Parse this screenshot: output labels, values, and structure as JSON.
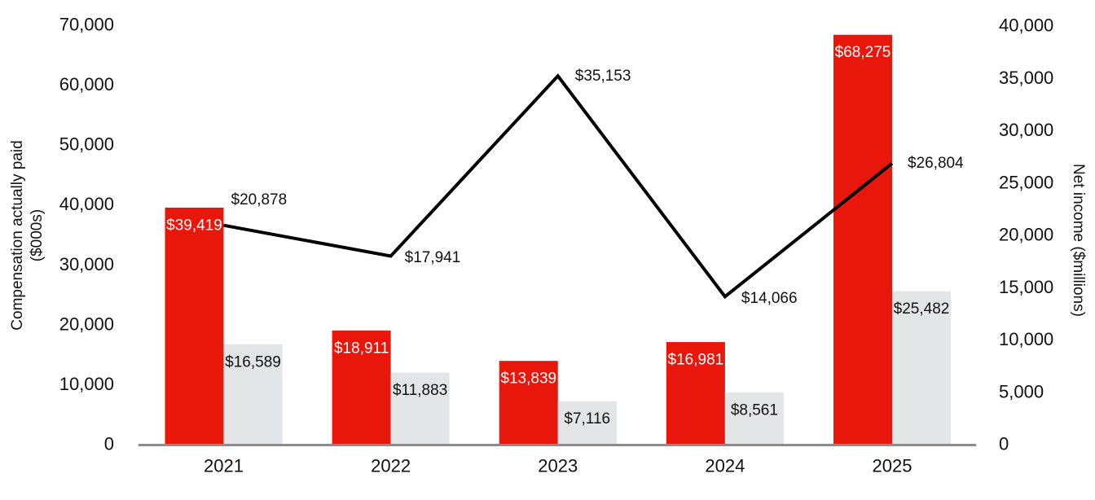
{
  "chart_data": {
    "type": "bar+line",
    "title": "",
    "categories": [
      "2021",
      "2022",
      "2023",
      "2024",
      "2025"
    ],
    "series": [
      {
        "name": "compensation-actually-paid-bars",
        "type": "bar",
        "axis": "left",
        "color": "#e9170b",
        "label_color": "#ffffff",
        "values": [
          39419,
          18911,
          13839,
          16981,
          68275
        ],
        "labels": [
          "$39,419",
          "$18,911",
          "$13,839",
          "$16,981",
          "$68,275"
        ]
      },
      {
        "name": "gray-bars",
        "type": "bar",
        "axis": "left",
        "color": "#e4e5e6",
        "label_color": "#111111",
        "values": [
          16589,
          11883,
          7116,
          8561,
          25482
        ],
        "labels": [
          "$16,589",
          "$11,883",
          "$7,116",
          "$8,561",
          "$25,482"
        ]
      },
      {
        "name": "net-income-line",
        "type": "line",
        "axis": "right",
        "color": "#000000",
        "label_color": "#111111",
        "values": [
          20878,
          17941,
          35153,
          14066,
          26804
        ],
        "labels": [
          "$20,878",
          "$17,941",
          "$35,153",
          "$14,066",
          "$26,804"
        ]
      }
    ],
    "left_axis": {
      "title_line1": "Compensation actually paid",
      "title_line2": "($000s)",
      "min": 0,
      "max": 70000,
      "tick_step": 10000,
      "tick_labels": [
        "0",
        "10,000",
        "20,000",
        "30,000",
        "40,000",
        "50,000",
        "60,000",
        "70,000"
      ]
    },
    "right_axis": {
      "title": "Net income ($millions)",
      "min": 0,
      "max": 40000,
      "tick_step": 5000,
      "tick_labels": [
        "0",
        "5,000",
        "10,000",
        "15,000",
        "20,000",
        "25,000",
        "30,000",
        "35,000",
        "40,000"
      ]
    },
    "grid": false,
    "legend": false
  },
  "colors": {
    "bar_red": "#e9170b",
    "bar_gray": "#e4e5e6",
    "line_black": "#000000",
    "axis_line_gray": "#8c8c8c",
    "text": "#111111"
  }
}
